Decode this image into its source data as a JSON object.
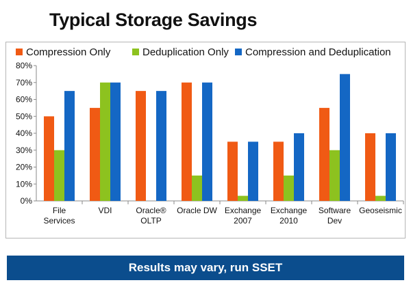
{
  "slide": {
    "title": "Typical Storage Savings",
    "banner": "Results may vary, run SSET"
  },
  "chart_data": {
    "type": "bar",
    "categories": [
      [
        "File",
        "Services"
      ],
      [
        "VDI"
      ],
      [
        "Oracle®",
        "OLTP"
      ],
      [
        "Oracle DW"
      ],
      [
        "Exchange",
        "2007"
      ],
      [
        "Exchange",
        "2010"
      ],
      [
        "Software",
        "Dev"
      ],
      [
        "Geoseismic"
      ]
    ],
    "series": [
      {
        "name": "Compression Only",
        "color": "#f05a14",
        "values": [
          50,
          55,
          65,
          70,
          35,
          35,
          55,
          40
        ]
      },
      {
        "name": "Deduplication Only",
        "color": "#8dc21f",
        "values": [
          30,
          70,
          0,
          15,
          3,
          15,
          30,
          3
        ]
      },
      {
        "name": "Compression and Deduplication",
        "color": "#1467c4",
        "values": [
          65,
          70,
          65,
          70,
          35,
          40,
          75,
          40
        ]
      }
    ],
    "y_ticks": [
      "0%",
      "10%",
      "20%",
      "30%",
      "40%",
      "50%",
      "60%",
      "70%",
      "80%"
    ],
    "ylim": [
      0,
      80
    ],
    "grid": false,
    "legend_position": "top"
  }
}
